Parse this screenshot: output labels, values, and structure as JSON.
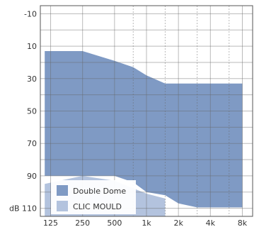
{
  "chart_data": {
    "type": "area",
    "title": "",
    "xlabel": "",
    "ylabel": "dB",
    "x_scale": "log",
    "y_inverted": true,
    "xlim": [
      100,
      10000
    ],
    "ylim": [
      -15,
      115
    ],
    "x_ticks": [
      {
        "value": 125,
        "label": "125"
      },
      {
        "value": 250,
        "label": "250"
      },
      {
        "value": 500,
        "label": "500"
      },
      {
        "value": 1000,
        "label": "1k"
      },
      {
        "value": 2000,
        "label": "2k"
      },
      {
        "value": 4000,
        "label": "4k"
      },
      {
        "value": 8000,
        "label": "8k"
      }
    ],
    "x_dotted_lines": [
      750,
      1500,
      3000,
      6000
    ],
    "y_ticks": [
      {
        "value": -10,
        "label": "-10"
      },
      {
        "value": 10,
        "label": "10"
      },
      {
        "value": 30,
        "label": "30"
      },
      {
        "value": 50,
        "label": "50"
      },
      {
        "value": 70,
        "label": "70"
      },
      {
        "value": 90,
        "label": "90"
      },
      {
        "value": 110,
        "label": "dB 110"
      }
    ],
    "y_minor_ticks": [
      0,
      20,
      40,
      60,
      80,
      100
    ],
    "grid": true,
    "legend_position": "bottom-left",
    "series": [
      {
        "name": "CLIC MOULD",
        "color": "#b3c3de",
        "upper": [
          [
            110,
            95
          ],
          [
            250,
            90
          ],
          [
            500,
            93
          ],
          [
            1000,
            101
          ],
          [
            1500,
            104
          ]
        ],
        "lower": [
          [
            110,
            115
          ],
          [
            1500,
            115
          ]
        ]
      },
      {
        "name": "Double Dome",
        "color": "#7f9ac4",
        "upper": [
          [
            110,
            13
          ],
          [
            250,
            13
          ],
          [
            500,
            19
          ],
          [
            750,
            23
          ],
          [
            1000,
            28
          ],
          [
            1500,
            33
          ],
          [
            8000,
            33
          ]
        ],
        "lower": [
          [
            110,
            90
          ],
          [
            250,
            90
          ],
          [
            500,
            90
          ],
          [
            750,
            94
          ],
          [
            1000,
            100
          ],
          [
            1500,
            102
          ],
          [
            2000,
            107
          ],
          [
            3000,
            109.5
          ],
          [
            8000,
            109.5
          ]
        ]
      }
    ]
  }
}
